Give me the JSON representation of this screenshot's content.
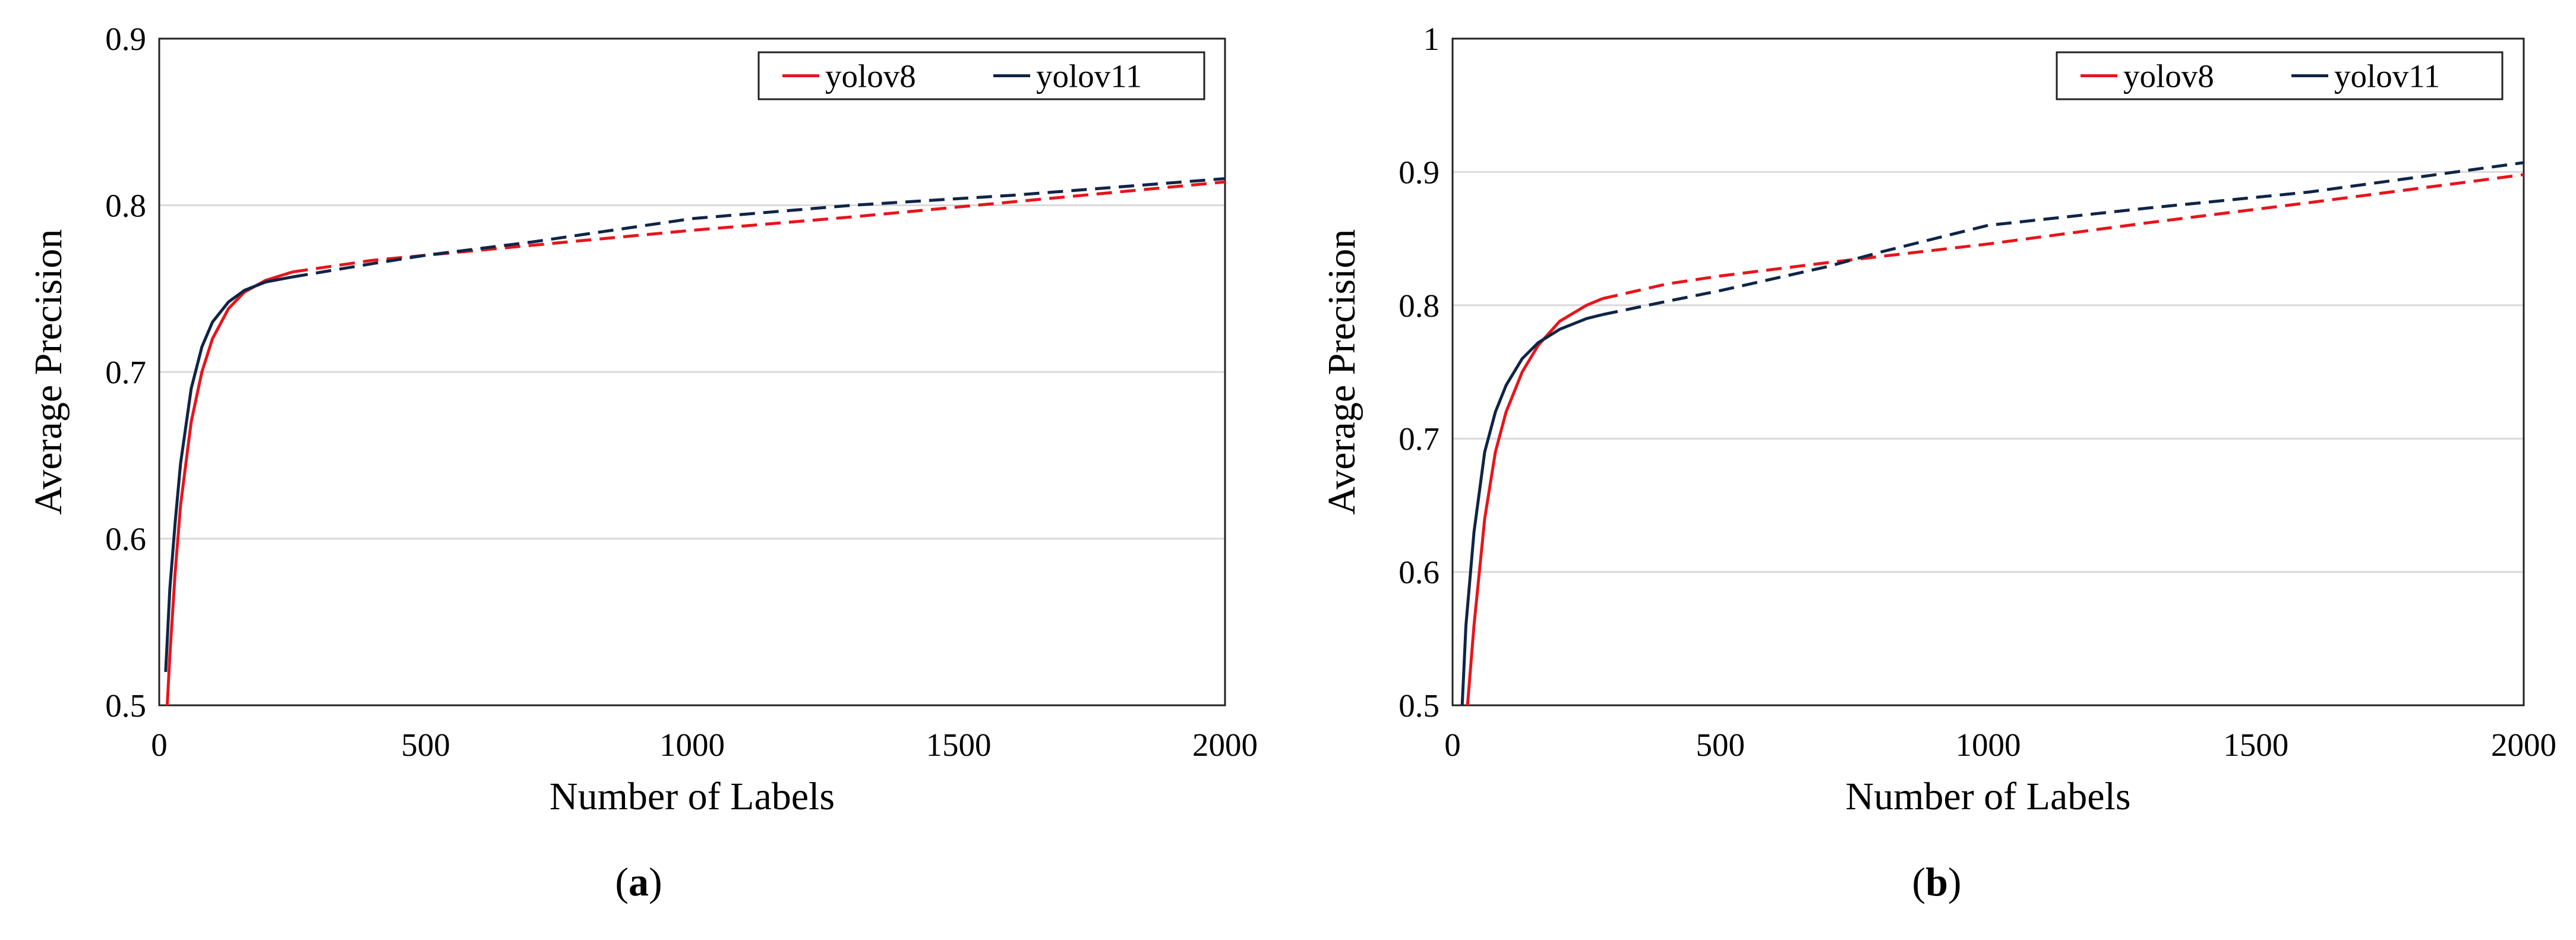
{
  "colors": {
    "yolov8": "#e8141b",
    "yolov11": "#0f2547",
    "grid": "#d9d9d9",
    "axis": "#000000"
  },
  "captions": [
    {
      "open": "(",
      "letter": "a",
      "close": ")"
    },
    {
      "open": "(",
      "letter": "b",
      "close": ")"
    }
  ],
  "chart_data": [
    {
      "type": "line",
      "title": "",
      "xlabel": "Number of Labels",
      "ylabel": "Average Precision",
      "xlim": [
        0,
        2000
      ],
      "ylim": [
        0.5,
        0.9
      ],
      "xticks": [
        0,
        500,
        1000,
        1500,
        2000
      ],
      "yticks": [
        0.5,
        0.6,
        0.7,
        0.8,
        0.9
      ],
      "ytick_labels": [
        "0.5",
        "0.6",
        "0.7",
        "0.8",
        "0.9"
      ],
      "grid": true,
      "legend": "top-right",
      "series": [
        {
          "name": "yolov8",
          "solid": {
            "x": [
              15,
              20,
              30,
              40,
              60,
              80,
              100,
              130,
              160,
              200,
              250
            ],
            "y": [
              0.5,
              0.53,
              0.58,
              0.62,
              0.67,
              0.7,
              0.72,
              0.738,
              0.748,
              0.755,
              0.76
            ]
          },
          "dashed": {
            "x": [
              250,
              400,
              500,
              700,
              1000,
              1300,
              1600,
              2000
            ],
            "y": [
              0.76,
              0.767,
              0.77,
              0.776,
              0.785,
              0.793,
              0.802,
              0.814
            ]
          }
        },
        {
          "name": "yolov11",
          "solid": {
            "x": [
              12,
              20,
              30,
              40,
              60,
              80,
              100,
              130,
              160,
              200,
              250
            ],
            "y": [
              0.52,
              0.57,
              0.61,
              0.645,
              0.69,
              0.715,
              0.73,
              0.742,
              0.749,
              0.754,
              0.757
            ]
          },
          "dashed": {
            "x": [
              250,
              400,
              500,
              700,
              1000,
              1300,
              1600,
              2000
            ],
            "y": [
              0.757,
              0.765,
              0.77,
              0.778,
              0.792,
              0.8,
              0.806,
              0.816
            ]
          }
        }
      ]
    },
    {
      "type": "line",
      "title": "",
      "xlabel": "Number of Labels",
      "ylabel": "Average Precision",
      "xlim": [
        0,
        2000
      ],
      "ylim": [
        0.5,
        1.0
      ],
      "xticks": [
        0,
        500,
        1000,
        1500,
        2000
      ],
      "yticks": [
        0.5,
        0.6,
        0.7,
        0.8,
        0.9,
        1.0
      ],
      "ytick_labels": [
        "0.5",
        "0.6",
        "0.7",
        "0.8",
        "0.9",
        "1"
      ],
      "grid": true,
      "legend": "top-right",
      "series": [
        {
          "name": "yolov8",
          "solid": {
            "x": [
              28,
              40,
              60,
              80,
              100,
              130,
              160,
              200,
              250,
              280
            ],
            "y": [
              0.5,
              0.56,
              0.64,
              0.69,
              0.72,
              0.75,
              0.77,
              0.788,
              0.8,
              0.805
            ]
          },
          "dashed": {
            "x": [
              280,
              400,
              500,
              700,
              1000,
              1300,
              1600,
              2000
            ],
            "y": [
              0.805,
              0.816,
              0.822,
              0.832,
              0.846,
              0.862,
              0.877,
              0.898
            ]
          }
        },
        {
          "name": "yolov11",
          "solid": {
            "x": [
              18,
              25,
              40,
              60,
              80,
              100,
              130,
              160,
              200,
              250,
              280
            ],
            "y": [
              0.5,
              0.56,
              0.63,
              0.69,
              0.72,
              0.74,
              0.76,
              0.772,
              0.782,
              0.79,
              0.793
            ]
          },
          "dashed": {
            "x": [
              280,
              400,
              500,
              700,
              800,
              1000,
              1300,
              1600,
              2000
            ],
            "y": [
              0.793,
              0.803,
              0.811,
              0.829,
              0.84,
              0.86,
              0.873,
              0.885,
              0.907
            ]
          }
        }
      ]
    }
  ]
}
